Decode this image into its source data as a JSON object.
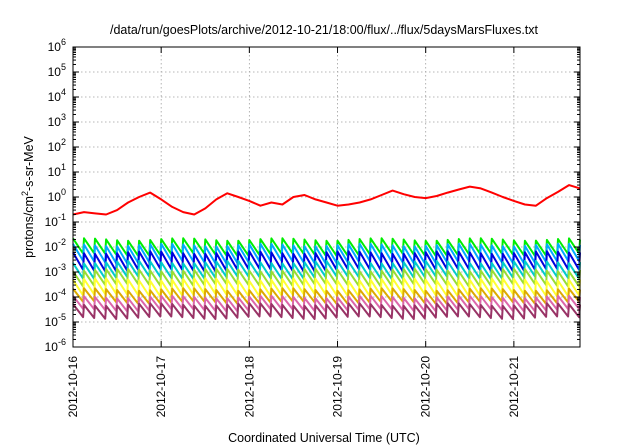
{
  "chart_data": {
    "type": "line",
    "title": "/data/run/goesPlots/archive/2012-10-21/18:00/flux/../flux/5daysMarsFluxes.txt",
    "xlabel": "Coordinated Universal Time (UTC)",
    "ylabel": {
      "prefix": "protons/cm",
      "sup": "2",
      "suffix": "-s-sr-MeV"
    },
    "y_scale": "log",
    "ylim": [
      1e-06,
      1000000.0
    ],
    "y_ticks": [
      {
        "value": -6,
        "base": "10",
        "exp": "-6"
      },
      {
        "value": -5,
        "base": "10",
        "exp": "-5"
      },
      {
        "value": -4,
        "base": "10",
        "exp": "-4"
      },
      {
        "value": -3,
        "base": "10",
        "exp": "-3"
      },
      {
        "value": -2,
        "base": "10",
        "exp": "-2"
      },
      {
        "value": -1,
        "base": "10",
        "exp": "-1"
      },
      {
        "value": 0,
        "base": "10",
        "exp": "0"
      },
      {
        "value": 1,
        "base": "10",
        "exp": "1"
      },
      {
        "value": 2,
        "base": "10",
        "exp": "2"
      },
      {
        "value": 3,
        "base": "10",
        "exp": "3"
      },
      {
        "value": 4,
        "base": "10",
        "exp": "4"
      },
      {
        "value": 5,
        "base": "10",
        "exp": "5"
      },
      {
        "value": 6,
        "base": "10",
        "exp": "6"
      }
    ],
    "xlim": [
      "2012-10-16T00:00",
      "2012-10-21T18:00"
    ],
    "x_ticks": [
      "2012-10-16",
      "2012-10-17",
      "2012-10-18",
      "2012-10-19",
      "2012-10-20",
      "2012-10-21"
    ],
    "grid": true,
    "series": [
      {
        "color": "#ff0000",
        "points": [
          [
            "2012-10-16T00:00",
            0.2
          ],
          [
            "2012-10-16T03:00",
            0.25
          ],
          [
            "2012-10-16T06:00",
            0.22
          ],
          [
            "2012-10-16T09:00",
            0.2
          ],
          [
            "2012-10-16T12:00",
            0.3
          ],
          [
            "2012-10-16T15:00",
            0.6
          ],
          [
            "2012-10-16T18:00",
            1.0
          ],
          [
            "2012-10-16T21:00",
            1.5
          ],
          [
            "2012-10-17T00:00",
            0.8
          ],
          [
            "2012-10-17T03:00",
            0.4
          ],
          [
            "2012-10-17T06:00",
            0.25
          ],
          [
            "2012-10-17T09:00",
            0.2
          ],
          [
            "2012-10-17T12:00",
            0.35
          ],
          [
            "2012-10-17T15:00",
            0.8
          ],
          [
            "2012-10-17T18:00",
            1.4
          ],
          [
            "2012-10-17T21:00",
            1.0
          ],
          [
            "2012-10-18T00:00",
            0.7
          ],
          [
            "2012-10-18T03:00",
            0.45
          ],
          [
            "2012-10-18T06:00",
            0.6
          ],
          [
            "2012-10-18T09:00",
            0.5
          ],
          [
            "2012-10-18T12:00",
            1.0
          ],
          [
            "2012-10-18T15:00",
            1.2
          ],
          [
            "2012-10-18T18:00",
            0.8
          ],
          [
            "2012-10-18T21:00",
            0.6
          ],
          [
            "2012-10-19T00:00",
            0.45
          ],
          [
            "2012-10-19T03:00",
            0.5
          ],
          [
            "2012-10-19T06:00",
            0.6
          ],
          [
            "2012-10-19T09:00",
            0.8
          ],
          [
            "2012-10-19T12:00",
            1.2
          ],
          [
            "2012-10-19T15:00",
            1.8
          ],
          [
            "2012-10-19T18:00",
            1.3
          ],
          [
            "2012-10-19T21:00",
            1.0
          ],
          [
            "2012-10-20T00:00",
            0.9
          ],
          [
            "2012-10-20T03:00",
            1.1
          ],
          [
            "2012-10-20T06:00",
            1.5
          ],
          [
            "2012-10-20T09:00",
            2.0
          ],
          [
            "2012-10-20T12:00",
            2.6
          ],
          [
            "2012-10-20T15:00",
            2.2
          ],
          [
            "2012-10-20T18:00",
            1.5
          ],
          [
            "2012-10-20T21:00",
            1.0
          ],
          [
            "2012-10-21T00:00",
            0.7
          ],
          [
            "2012-10-21T03:00",
            0.5
          ],
          [
            "2012-10-21T06:00",
            0.45
          ],
          [
            "2012-10-21T09:00",
            0.9
          ],
          [
            "2012-10-21T12:00",
            1.6
          ],
          [
            "2012-10-21T15:00",
            3.0
          ],
          [
            "2012-10-21T18:00",
            2.2
          ]
        ]
      },
      {
        "color": "#00ee00",
        "sawtooth": {
          "low": 0.005,
          "high": 0.02
        }
      },
      {
        "color": "#00aaff",
        "sawtooth": {
          "low": 0.0025,
          "high": 0.012
        }
      },
      {
        "color": "#0000dd",
        "sawtooth": {
          "low": 0.0012,
          "high": 0.006
        }
      },
      {
        "color": "#00cccc",
        "sawtooth": {
          "low": 0.0006,
          "high": 0.0025
        }
      },
      {
        "color": "#99dd33",
        "sawtooth": {
          "low": 0.0003,
          "high": 0.0012
        }
      },
      {
        "color": "#ffff33",
        "sawtooth": {
          "low": 0.00012,
          "high": 0.0005
        }
      },
      {
        "color": "#ddaa00",
        "sawtooth": {
          "low": 6e-05,
          "high": 0.0002
        }
      },
      {
        "color": "#dd66aa",
        "sawtooth": {
          "low": 3e-05,
          "high": 0.0001
        }
      },
      {
        "color": "#993366",
        "sawtooth": {
          "low": 1.5e-05,
          "high": 5e-05
        }
      }
    ]
  }
}
